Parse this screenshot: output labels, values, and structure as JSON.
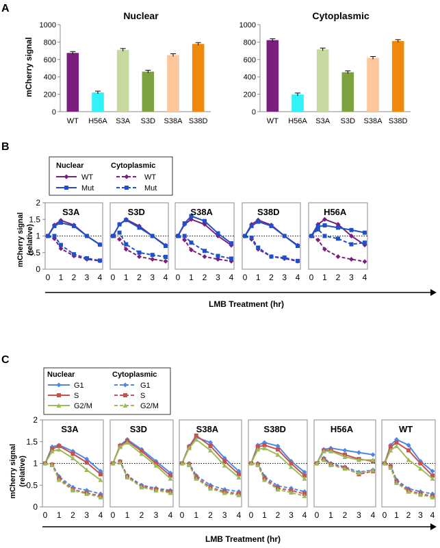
{
  "panel_labels": [
    "A",
    "B",
    "C"
  ],
  "colors": {
    "purple": "#7b1f7f",
    "blue": "#1f4fc9",
    "cyan": "#33f2f7",
    "lightgreen": "#c8d9a0",
    "olive": "#7ea23f",
    "peach": "#fcc79a",
    "orange": "#f0880c",
    "c_blue": "#4f86e6",
    "c_red": "#c4524f",
    "c_green": "#9bbb59"
  },
  "shared": {
    "ylabel_a": "mCherry signal",
    "ylabel_bc": [
      "mCherry signal",
      "(relative)"
    ],
    "xlabel": "LMB Treatment (hr)"
  },
  "legend_b": {
    "nuclear_title": "Nuclear",
    "cyto_title": "Cytoplasmic",
    "wt": "WT",
    "mut": "Mut"
  },
  "legend_c": {
    "nuclear_title": "Nuclear",
    "cyto_title": "Cytoplasmic",
    "g1": "G1",
    "s": "S",
    "g2m": "G2/M"
  },
  "chart_data": [
    {
      "type": "bar",
      "title": "Nuclear",
      "ylabel": "mCherry signal",
      "categories": [
        "WT",
        "H56A",
        "S3A",
        "S3D",
        "S38A",
        "S38D"
      ],
      "values": [
        675,
        220,
        710,
        460,
        650,
        778
      ],
      "ylim": [
        0,
        1000
      ],
      "yticks": [
        0,
        200,
        400,
        600,
        800,
        1000
      ]
    },
    {
      "type": "bar",
      "title": "Cytoplasmic",
      "categories": [
        "WT",
        "H56A",
        "S3A",
        "S3D",
        "S38A",
        "S38D"
      ],
      "values": [
        822,
        198,
        715,
        453,
        618,
        812
      ],
      "ylim": [
        0,
        1000
      ],
      "yticks": [
        0,
        200,
        400,
        600,
        800,
        1000
      ]
    },
    {
      "type": "line",
      "panel": "B",
      "x": [
        0,
        0.5,
        1,
        2,
        3,
        4
      ],
      "ylim": [
        0,
        2
      ],
      "yticks": [
        0,
        0.5,
        1,
        1.5,
        2
      ],
      "xticks": [
        0,
        1,
        2,
        3,
        4
      ],
      "reference_line": 1,
      "subplots": [
        {
          "title": "S3A",
          "series": [
            {
              "name": "WT",
              "compartment": "Nuclear",
              "values": [
                1,
                1.33,
                1.47,
                1.33,
                1.0,
                0.74
              ]
            },
            {
              "name": "Mut",
              "compartment": "Nuclear",
              "values": [
                1,
                1.3,
                1.4,
                1.3,
                1.0,
                0.74
              ]
            },
            {
              "name": "WT",
              "compartment": "Cytoplasmic",
              "values": [
                1,
                0.92,
                0.62,
                0.4,
                0.3,
                0.25
              ]
            },
            {
              "name": "Mut",
              "compartment": "Cytoplasmic",
              "values": [
                1,
                1.0,
                0.73,
                0.45,
                0.33,
                0.26
              ]
            }
          ]
        },
        {
          "title": "S3D",
          "series": [
            {
              "name": "WT",
              "compartment": "Nuclear",
              "values": [
                1,
                1.35,
                1.5,
                1.3,
                1.0,
                0.72
              ]
            },
            {
              "name": "Mut",
              "compartment": "Nuclear",
              "values": [
                1,
                1.35,
                1.48,
                1.25,
                1.0,
                0.7
              ]
            },
            {
              "name": "WT",
              "compartment": "Cytoplasmic",
              "values": [
                1,
                0.9,
                0.6,
                0.38,
                0.3,
                0.24
              ]
            },
            {
              "name": "Mut",
              "compartment": "Cytoplasmic",
              "values": [
                1,
                1.1,
                0.75,
                0.5,
                0.43,
                0.37
              ]
            }
          ]
        },
        {
          "title": "S38A",
          "series": [
            {
              "name": "WT",
              "compartment": "Nuclear",
              "values": [
                1,
                1.35,
                1.5,
                1.35,
                1.0,
                0.72
              ]
            },
            {
              "name": "Mut",
              "compartment": "Nuclear",
              "values": [
                1,
                1.38,
                1.6,
                1.45,
                1.08,
                0.78
              ]
            },
            {
              "name": "WT",
              "compartment": "Cytoplasmic",
              "values": [
                1,
                0.88,
                0.58,
                0.38,
                0.3,
                0.24
              ]
            },
            {
              "name": "Mut",
              "compartment": "Cytoplasmic",
              "values": [
                1,
                1.0,
                0.8,
                0.55,
                0.4,
                0.32
              ]
            }
          ]
        },
        {
          "title": "S38D",
          "series": [
            {
              "name": "WT",
              "compartment": "Nuclear",
              "values": [
                1,
                1.35,
                1.48,
                1.33,
                1.0,
                0.72
              ]
            },
            {
              "name": "Mut",
              "compartment": "Nuclear",
              "values": [
                1,
                1.3,
                1.43,
                1.3,
                1.0,
                0.7
              ]
            },
            {
              "name": "WT",
              "compartment": "Cytoplasmic",
              "values": [
                1,
                0.9,
                0.6,
                0.38,
                0.32,
                0.24
              ]
            },
            {
              "name": "Mut",
              "compartment": "Cytoplasmic",
              "values": [
                1,
                0.95,
                0.65,
                0.38,
                0.35,
                0.25
              ]
            }
          ]
        },
        {
          "title": "H56A",
          "series": [
            {
              "name": "WT",
              "compartment": "Nuclear",
              "values": [
                1,
                1.35,
                1.5,
                1.35,
                1.0,
                0.73
              ]
            },
            {
              "name": "Mut",
              "compartment": "Nuclear",
              "values": [
                1,
                1.28,
                1.32,
                1.25,
                1.18,
                1.1
              ]
            },
            {
              "name": "WT",
              "compartment": "Cytoplasmic",
              "values": [
                1,
                0.88,
                0.6,
                0.38,
                0.3,
                0.23
              ]
            },
            {
              "name": "Mut",
              "compartment": "Cytoplasmic",
              "values": [
                1,
                1.2,
                1.0,
                0.92,
                0.75,
                0.8
              ]
            }
          ]
        }
      ]
    },
    {
      "type": "line",
      "panel": "C",
      "x": [
        0,
        0.5,
        1,
        2,
        3,
        4
      ],
      "ylim": [
        0,
        2
      ],
      "yticks": [
        0,
        0.5,
        1,
        1.5,
        2
      ],
      "xticks": [
        0,
        1,
        2,
        3,
        4
      ],
      "reference_line": 1,
      "subplots": [
        {
          "title": "S3A",
          "series": [
            {
              "name": "G1",
              "compartment": "Nuclear",
              "values": [
                1,
                1.38,
                1.42,
                1.28,
                1.1,
                0.82
              ]
            },
            {
              "name": "S",
              "compartment": "Nuclear",
              "values": [
                1,
                1.33,
                1.4,
                1.22,
                1.02,
                0.75
              ]
            },
            {
              "name": "G2/M",
              "compartment": "Nuclear",
              "values": [
                1,
                1.28,
                1.32,
                1.12,
                0.85,
                0.62
              ]
            },
            {
              "name": "G1",
              "compartment": "Cytoplasmic",
              "values": [
                1,
                0.98,
                0.7,
                0.45,
                0.38,
                0.3
              ]
            },
            {
              "name": "S",
              "compartment": "Cytoplasmic",
              "values": [
                1,
                0.97,
                0.66,
                0.4,
                0.32,
                0.25
              ]
            },
            {
              "name": "G2/M",
              "compartment": "Cytoplasmic",
              "values": [
                1,
                0.96,
                0.62,
                0.38,
                0.3,
                0.22
              ]
            }
          ]
        },
        {
          "title": "S3D",
          "series": [
            {
              "name": "G1",
              "compartment": "Nuclear",
              "values": [
                1,
                1.42,
                1.55,
                1.32,
                1.05,
                0.78
              ]
            },
            {
              "name": "S",
              "compartment": "Nuclear",
              "values": [
                1,
                1.4,
                1.52,
                1.28,
                1.0,
                0.72
              ]
            },
            {
              "name": "G2/M",
              "compartment": "Nuclear",
              "values": [
                1,
                1.38,
                1.48,
                1.22,
                0.95,
                0.65
              ]
            },
            {
              "name": "G1",
              "compartment": "Cytoplasmic",
              "values": [
                1,
                1.05,
                0.72,
                0.5,
                0.43,
                0.38
              ]
            },
            {
              "name": "S",
              "compartment": "Cytoplasmic",
              "values": [
                1,
                1.04,
                0.7,
                0.47,
                0.4,
                0.35
              ]
            },
            {
              "name": "G2/M",
              "compartment": "Cytoplasmic",
              "values": [
                1,
                1.02,
                0.68,
                0.45,
                0.38,
                0.32
              ]
            }
          ]
        },
        {
          "title": "S38A",
          "series": [
            {
              "name": "G1",
              "compartment": "Nuclear",
              "values": [
                1,
                1.4,
                1.6,
                1.48,
                1.12,
                0.82
              ]
            },
            {
              "name": "S",
              "compartment": "Nuclear",
              "values": [
                1,
                1.38,
                1.64,
                1.4,
                1.05,
                0.75
              ]
            },
            {
              "name": "G2/M",
              "compartment": "Nuclear",
              "values": [
                1,
                1.35,
                1.55,
                1.3,
                0.95,
                0.68
              ]
            },
            {
              "name": "G1",
              "compartment": "Cytoplasmic",
              "values": [
                1,
                1.0,
                0.72,
                0.5,
                0.4,
                0.35
              ]
            },
            {
              "name": "S",
              "compartment": "Cytoplasmic",
              "values": [
                1,
                0.98,
                0.68,
                0.45,
                0.35,
                0.3
              ]
            },
            {
              "name": "G2/M",
              "compartment": "Cytoplasmic",
              "values": [
                1,
                0.96,
                0.65,
                0.42,
                0.32,
                0.27
              ]
            }
          ]
        },
        {
          "title": "S38D",
          "series": [
            {
              "name": "G1",
              "compartment": "Nuclear",
              "values": [
                1,
                1.42,
                1.48,
                1.4,
                1.05,
                0.8
              ]
            },
            {
              "name": "S",
              "compartment": "Nuclear",
              "values": [
                1,
                1.38,
                1.42,
                1.32,
                1.0,
                0.72
              ]
            },
            {
              "name": "G2/M",
              "compartment": "Nuclear",
              "values": [
                1,
                1.32,
                1.35,
                1.2,
                0.92,
                0.65
              ]
            },
            {
              "name": "G1",
              "compartment": "Cytoplasmic",
              "values": [
                1,
                1.0,
                0.7,
                0.48,
                0.43,
                0.35
              ]
            },
            {
              "name": "S",
              "compartment": "Cytoplasmic",
              "values": [
                1,
                0.98,
                0.66,
                0.43,
                0.38,
                0.3
              ]
            },
            {
              "name": "G2/M",
              "compartment": "Cytoplasmic",
              "values": [
                1,
                0.96,
                0.62,
                0.4,
                0.33,
                0.25
              ]
            }
          ]
        },
        {
          "title": "H56A",
          "series": [
            {
              "name": "G1",
              "compartment": "Nuclear",
              "values": [
                1,
                1.32,
                1.35,
                1.3,
                1.25,
                1.2
              ]
            },
            {
              "name": "S",
              "compartment": "Nuclear",
              "values": [
                1,
                1.3,
                1.3,
                1.2,
                1.1,
                1.05
              ]
            },
            {
              "name": "G2/M",
              "compartment": "Nuclear",
              "values": [
                1,
                1.28,
                1.28,
                1.15,
                1.08,
                1.08
              ]
            },
            {
              "name": "G1",
              "compartment": "Cytoplasmic",
              "values": [
                1,
                1.12,
                1.0,
                0.92,
                0.8,
                0.85
              ]
            },
            {
              "name": "S",
              "compartment": "Cytoplasmic",
              "values": [
                1,
                1.1,
                0.98,
                0.9,
                0.75,
                0.82
              ]
            },
            {
              "name": "G2/M",
              "compartment": "Cytoplasmic",
              "values": [
                1,
                1.08,
                0.96,
                0.88,
                0.78,
                0.84
              ]
            }
          ]
        },
        {
          "title": "WT",
          "series": [
            {
              "name": "G1",
              "compartment": "Nuclear",
              "values": [
                1,
                1.42,
                1.55,
                1.42,
                1.05,
                0.82
              ]
            },
            {
              "name": "S",
              "compartment": "Nuclear",
              "values": [
                1,
                1.38,
                1.48,
                1.3,
                1.0,
                0.72
              ]
            },
            {
              "name": "G2/M",
              "compartment": "Nuclear",
              "values": [
                1,
                1.3,
                1.4,
                1.08,
                0.88,
                0.65
              ]
            },
            {
              "name": "G1",
              "compartment": "Cytoplasmic",
              "values": [
                1,
                0.95,
                0.62,
                0.42,
                0.35,
                0.3
              ]
            },
            {
              "name": "S",
              "compartment": "Cytoplasmic",
              "values": [
                1,
                0.93,
                0.58,
                0.38,
                0.3,
                0.25
              ]
            },
            {
              "name": "G2/M",
              "compartment": "Cytoplasmic",
              "values": [
                1,
                0.9,
                0.55,
                0.35,
                0.28,
                0.22
              ]
            }
          ]
        }
      ]
    }
  ]
}
